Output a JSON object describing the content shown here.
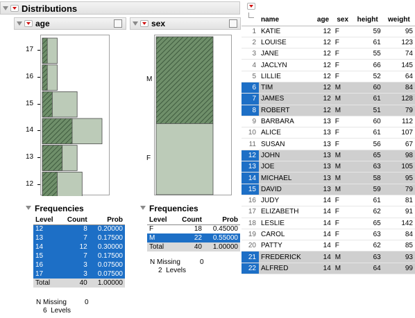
{
  "distributions": {
    "title": "Distributions"
  },
  "age_panel": {
    "title": "age",
    "ticks": [
      "17",
      "16",
      "15",
      "14",
      "13",
      "12"
    ],
    "frequencies": {
      "title": "Frequencies",
      "headers": [
        "Level",
        "Count",
        "Prob"
      ],
      "rows": [
        {
          "level": "12",
          "count": "8",
          "prob": "0.20000"
        },
        {
          "level": "13",
          "count": "7",
          "prob": "0.17500"
        },
        {
          "level": "14",
          "count": "12",
          "prob": "0.30000"
        },
        {
          "level": "15",
          "count": "7",
          "prob": "0.17500"
        },
        {
          "level": "16",
          "count": "3",
          "prob": "0.07500"
        },
        {
          "level": "17",
          "count": "3",
          "prob": "0.07500"
        }
      ],
      "total": {
        "label": "Total",
        "count": "40",
        "prob": "1.00000"
      },
      "missing_label": "N Missing",
      "missing_value": "0",
      "levels": "6  Levels"
    }
  },
  "sex_panel": {
    "title": "sex",
    "ticks": [
      "M",
      "F"
    ],
    "frequencies": {
      "title": "Frequencies",
      "headers": [
        "Level",
        "Count",
        "Prob"
      ],
      "rows": [
        {
          "level": "F",
          "count": "18",
          "prob": "0.45000"
        },
        {
          "level": "M",
          "count": "22",
          "prob": "0.55000"
        }
      ],
      "total": {
        "label": "Total",
        "count": "40",
        "prob": "1.00000"
      },
      "missing_label": "N Missing",
      "missing_value": "0",
      "levels": "2  Levels"
    }
  },
  "data_table": {
    "headers": [
      "name",
      "age",
      "sex",
      "height",
      "weight"
    ],
    "rows": [
      {
        "n": "1",
        "name": "KATIE",
        "age": "12",
        "sex": "F",
        "height": "59",
        "weight": "95"
      },
      {
        "n": "2",
        "name": "LOUISE",
        "age": "12",
        "sex": "F",
        "height": "61",
        "weight": "123"
      },
      {
        "n": "3",
        "name": "JANE",
        "age": "12",
        "sex": "F",
        "height": "55",
        "weight": "74"
      },
      {
        "n": "4",
        "name": "JACLYN",
        "age": "12",
        "sex": "F",
        "height": "66",
        "weight": "145"
      },
      {
        "n": "5",
        "name": "LILLIE",
        "age": "12",
        "sex": "F",
        "height": "52",
        "weight": "64"
      },
      {
        "n": "6",
        "name": "TIM",
        "age": "12",
        "sex": "M",
        "height": "60",
        "weight": "84"
      },
      {
        "n": "7",
        "name": "JAMES",
        "age": "12",
        "sex": "M",
        "height": "61",
        "weight": "128"
      },
      {
        "n": "8",
        "name": "ROBERT",
        "age": "12",
        "sex": "M",
        "height": "51",
        "weight": "79"
      },
      {
        "n": "9",
        "name": "BARBARA",
        "age": "13",
        "sex": "F",
        "height": "60",
        "weight": "112"
      },
      {
        "n": "10",
        "name": "ALICE",
        "age": "13",
        "sex": "F",
        "height": "61",
        "weight": "107"
      },
      {
        "n": "11",
        "name": "SUSAN",
        "age": "13",
        "sex": "F",
        "height": "56",
        "weight": "67"
      },
      {
        "n": "12",
        "name": "JOHN",
        "age": "13",
        "sex": "M",
        "height": "65",
        "weight": "98"
      },
      {
        "n": "13",
        "name": "JOE",
        "age": "13",
        "sex": "M",
        "height": "63",
        "weight": "105"
      },
      {
        "n": "14",
        "name": "MICHAEL",
        "age": "13",
        "sex": "M",
        "height": "58",
        "weight": "95"
      },
      {
        "n": "15",
        "name": "DAVID",
        "age": "13",
        "sex": "M",
        "height": "59",
        "weight": "79"
      },
      {
        "n": "16",
        "name": "JUDY",
        "age": "14",
        "sex": "F",
        "height": "61",
        "weight": "81"
      },
      {
        "n": "17",
        "name": "ELIZABETH",
        "age": "14",
        "sex": "F",
        "height": "62",
        "weight": "91"
      },
      {
        "n": "18",
        "name": "LESLIE",
        "age": "14",
        "sex": "F",
        "height": "65",
        "weight": "142"
      },
      {
        "n": "19",
        "name": "CAROL",
        "age": "14",
        "sex": "F",
        "height": "63",
        "weight": "84"
      },
      {
        "n": "20",
        "name": "PATTY",
        "age": "14",
        "sex": "F",
        "height": "62",
        "weight": "85"
      },
      {
        "n": "21",
        "name": "FREDERICK",
        "age": "14",
        "sex": "M",
        "height": "63",
        "weight": "93"
      },
      {
        "n": "22",
        "name": "ALFRED",
        "age": "14",
        "sex": "M",
        "height": "64",
        "weight": "99"
      }
    ]
  },
  "chart_data": [
    {
      "type": "bar",
      "orientation": "horizontal",
      "categories": [
        "12",
        "13",
        "14",
        "15",
        "16",
        "17"
      ],
      "values": [
        8,
        7,
        12,
        7,
        3,
        3
      ],
      "highlighted_values": [
        3,
        4,
        6,
        2,
        1,
        1
      ],
      "title": "age",
      "xlabel": "",
      "ylabel": ""
    },
    {
      "type": "bar",
      "orientation": "vertical",
      "categories": [
        "F",
        "M"
      ],
      "values": [
        18,
        22
      ],
      "highlighted_values": [
        0,
        22
      ],
      "title": "sex",
      "xlabel": "",
      "ylabel": ""
    }
  ],
  "colors": {
    "selection_blue": "#1d6fc6",
    "bar_fill": "#bccbb8",
    "bar_hatch": "#5c7a5c",
    "row_selected_gray": "#cfcfcf",
    "disclosure_red": "#d01010"
  }
}
